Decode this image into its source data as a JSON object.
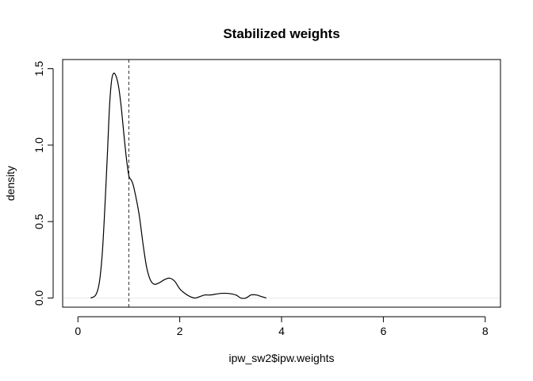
{
  "chart_data": {
    "type": "line",
    "title": "Stabilized weights",
    "xlabel": "ipw_sw2$ipw.weights",
    "ylabel": "density",
    "xlim": [
      -0.3,
      8.3
    ],
    "ylim": [
      -0.06,
      1.56
    ],
    "x_ticks": [
      0,
      2,
      4,
      6,
      8
    ],
    "x_tick_labels": [
      "0",
      "2",
      "4",
      "6",
      "8"
    ],
    "y_ticks": [
      0.0,
      0.5,
      1.0,
      1.5
    ],
    "y_tick_labels": [
      "0.0",
      "0.5",
      "1.0",
      "1.5"
    ],
    "grid": false,
    "legend": "none",
    "reference_lines": [
      {
        "orientation": "vertical",
        "x": 1.0,
        "style": "dashed"
      },
      {
        "orientation": "horizontal",
        "y": 0.0,
        "style": "solid",
        "color": "#e8e8e8"
      }
    ],
    "series": [
      {
        "color": "#000000",
        "x": [
          0.25,
          0.35,
          0.42,
          0.48,
          0.53,
          0.58,
          0.62,
          0.66,
          0.7,
          0.75,
          0.8,
          0.85,
          0.9,
          0.95,
          1.0,
          1.05,
          1.1,
          1.2,
          1.28,
          1.35,
          1.42,
          1.5,
          1.6,
          1.7,
          1.8,
          1.9,
          2.0,
          2.1,
          2.2,
          2.3,
          2.4,
          2.5,
          2.6,
          2.8,
          2.95,
          3.1,
          3.2,
          3.3,
          3.4,
          3.5,
          3.6,
          3.7
        ],
        "y": [
          0.0,
          0.02,
          0.1,
          0.3,
          0.6,
          0.95,
          1.25,
          1.42,
          1.47,
          1.45,
          1.38,
          1.25,
          1.08,
          0.92,
          0.8,
          0.77,
          0.72,
          0.55,
          0.35,
          0.2,
          0.12,
          0.09,
          0.1,
          0.12,
          0.13,
          0.11,
          0.06,
          0.03,
          0.01,
          0.0,
          0.01,
          0.02,
          0.02,
          0.03,
          0.03,
          0.02,
          0.0,
          0.0,
          0.02,
          0.02,
          0.01,
          0.0
        ]
      }
    ]
  }
}
